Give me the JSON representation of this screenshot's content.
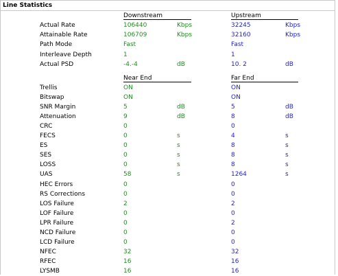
{
  "title": "Line Statistics",
  "headers1": {
    "left": "Downstream",
    "right": "Upstream"
  },
  "headers2": {
    "left": "Near End",
    "right": "Far End"
  },
  "rows1": [
    {
      "label": "Actual Rate",
      "ds": "106440",
      "ds_unit": "Kbps",
      "us": "32245",
      "us_unit": "Kbps"
    },
    {
      "label": "Attainable Rate",
      "ds": "106709",
      "ds_unit": "Kbps",
      "us": "32160",
      "us_unit": "Kbps"
    },
    {
      "label": "Path Mode",
      "ds": "Fast",
      "ds_unit": "",
      "us": "Fast",
      "us_unit": ""
    },
    {
      "label": "Interleave Depth",
      "ds": "1",
      "ds_unit": "",
      "us": "1",
      "us_unit": ""
    },
    {
      "label": "Actual PSD",
      "ds": "-4.-4",
      "ds_unit": "dB",
      "us": "10. 2",
      "us_unit": "dB"
    }
  ],
  "rows2": [
    {
      "label": "Trellis",
      "ds": "ON",
      "ds_unit": "",
      "us": "ON",
      "us_unit": ""
    },
    {
      "label": "Bitswap",
      "ds": "ON",
      "ds_unit": "",
      "us": "ON",
      "us_unit": ""
    },
    {
      "label": "SNR Margin",
      "ds": "5",
      "ds_unit": "dB",
      "us": "5",
      "us_unit": "dB"
    },
    {
      "label": "Attenuation",
      "ds": "9",
      "ds_unit": "dB",
      "us": "8",
      "us_unit": "dB"
    },
    {
      "label": "CRC",
      "ds": "0",
      "ds_unit": "",
      "us": "0",
      "us_unit": ""
    },
    {
      "label": "FECS",
      "ds": "0",
      "ds_unit": "s",
      "us": "4",
      "us_unit": "s"
    },
    {
      "label": "ES",
      "ds": "0",
      "ds_unit": "s",
      "us": "8",
      "us_unit": "s"
    },
    {
      "label": "SES",
      "ds": "0",
      "ds_unit": "s",
      "us": "8",
      "us_unit": "s"
    },
    {
      "label": "LOSS",
      "ds": "0",
      "ds_unit": "s",
      "us": "8",
      "us_unit": "s"
    },
    {
      "label": "UAS",
      "ds": "58",
      "ds_unit": "s",
      "us": "1264",
      "us_unit": "s"
    },
    {
      "label": "HEC Errors",
      "ds": "0",
      "ds_unit": "",
      "us": "0",
      "us_unit": ""
    },
    {
      "label": "RS Corrections",
      "ds": "0",
      "ds_unit": "",
      "us": "0",
      "us_unit": ""
    },
    {
      "label": "LOS Failure",
      "ds": "2",
      "ds_unit": "",
      "us": "2",
      "us_unit": ""
    },
    {
      "label": "LOF Failure",
      "ds": "0",
      "ds_unit": "",
      "us": "0",
      "us_unit": ""
    },
    {
      "label": "LPR Failure",
      "ds": "0",
      "ds_unit": "",
      "us": "2",
      "us_unit": ""
    },
    {
      "label": "NCD Failure",
      "ds": "0",
      "ds_unit": "",
      "us": "0",
      "us_unit": ""
    },
    {
      "label": "LCD Failure",
      "ds": "0",
      "ds_unit": "",
      "us": "0",
      "us_unit": ""
    },
    {
      "label": "NFEC",
      "ds": "32",
      "ds_unit": "",
      "us": "32",
      "us_unit": ""
    },
    {
      "label": "RFEC",
      "ds": "16",
      "ds_unit": "",
      "us": "16",
      "us_unit": ""
    },
    {
      "label": "LYSMB",
      "ds": "16",
      "ds_unit": "",
      "us": "16",
      "us_unit": ""
    }
  ],
  "colors": {
    "downstream": "#228B22",
    "upstream": "#2323c8",
    "label": "#000000"
  }
}
